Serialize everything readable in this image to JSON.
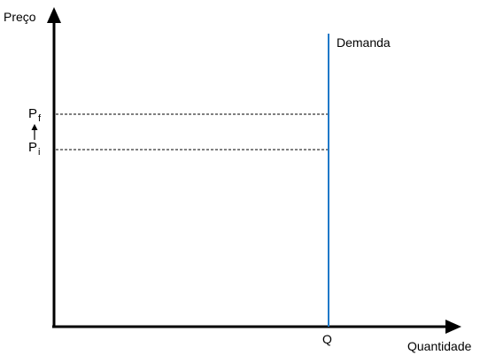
{
  "diagram": {
    "y_axis_label": "Preço",
    "x_axis_label": "Quantidade",
    "demand_label": "Demanda",
    "q_label": "Q",
    "price_final": {
      "base": "P",
      "subscript": "f"
    },
    "price_initial": {
      "base": "P",
      "subscript": "i"
    },
    "colors": {
      "axis": "#000000",
      "demand_line": "#1f78c8",
      "guide_line": "#000000",
      "background": "#ffffff"
    }
  }
}
